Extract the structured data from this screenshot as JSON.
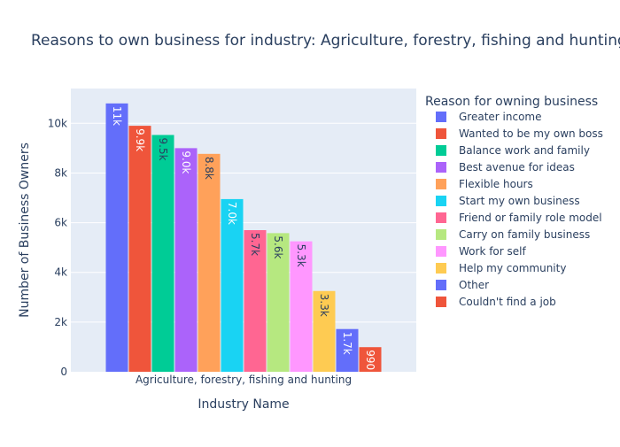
{
  "chart_data": {
    "type": "bar",
    "title": "Reasons to own business for industry: Agriculture, forestry, fishing and hunting",
    "xlabel": "Industry Name",
    "ylabel": "Number of Business Owners",
    "categories": [
      "Agriculture, forestry, fishing and hunting"
    ],
    "ylim": [
      0,
      11400
    ],
    "yticks": [
      0,
      2000,
      4000,
      6000,
      8000,
      10000
    ],
    "ytick_labels": [
      "0",
      "2k",
      "4k",
      "6k",
      "8k",
      "10k"
    ],
    "grid": true,
    "legend": {
      "title": "Reason for owning business",
      "position": "right"
    },
    "series": [
      {
        "name": "Greater income",
        "values": [
          10800
        ],
        "label": "11k",
        "color": "#636efa"
      },
      {
        "name": "Wanted to be my own boss",
        "values": [
          9900
        ],
        "label": "9.9k",
        "color": "#EF553B"
      },
      {
        "name": "Balance work and family",
        "values": [
          9530
        ],
        "label": "9.5k",
        "color": "#00cc96"
      },
      {
        "name": "Best avenue for ideas",
        "values": [
          9000
        ],
        "label": "9.0k",
        "color": "#ab63fa"
      },
      {
        "name": "Flexible hours",
        "values": [
          8770
        ],
        "label": "8.8k",
        "color": "#FFA15A"
      },
      {
        "name": "Start my own business",
        "values": [
          6950
        ],
        "label": "7.0k",
        "color": "#19d3f3"
      },
      {
        "name": "Friend or family role model",
        "values": [
          5700
        ],
        "label": "5.7k",
        "color": "#FF6692"
      },
      {
        "name": "Carry on family business",
        "values": [
          5580
        ],
        "label": "5.6k",
        "color": "#B6E880"
      },
      {
        "name": "Work for self",
        "values": [
          5250
        ],
        "label": "5.3k",
        "color": "#FF97FF"
      },
      {
        "name": "Help my community",
        "values": [
          3250
        ],
        "label": "3.3k",
        "color": "#FECB52"
      },
      {
        "name": "Other",
        "values": [
          1720
        ],
        "label": "1.7k",
        "color": "#636efa"
      },
      {
        "name": "Couldn't find a job",
        "values": [
          990
        ],
        "label": "990",
        "color": "#EF553B"
      }
    ]
  }
}
